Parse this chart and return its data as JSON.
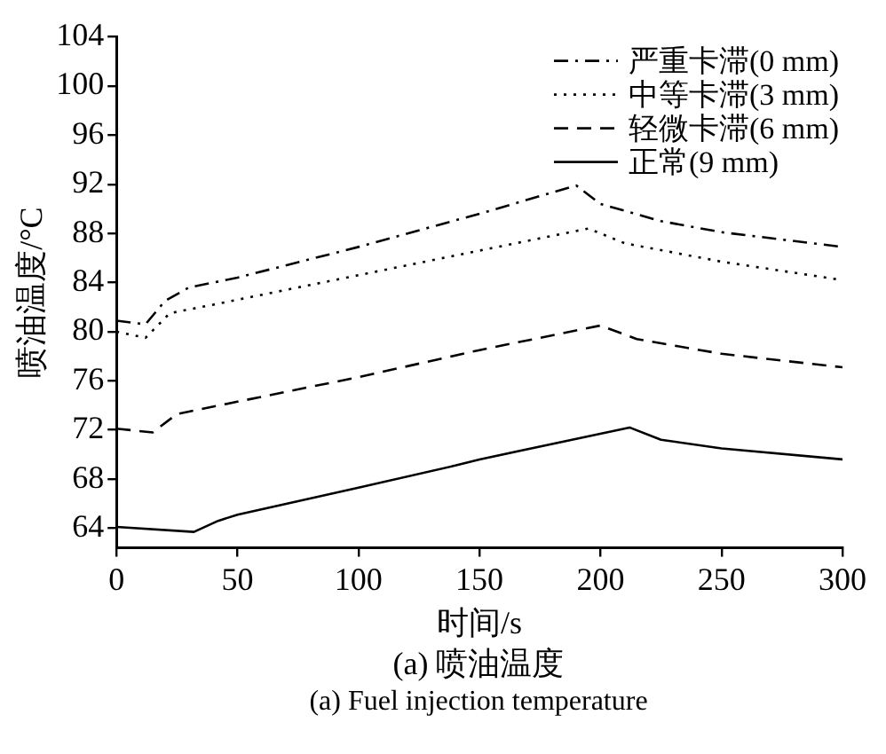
{
  "chart_data": {
    "type": "line",
    "xlabel": "时间/s",
    "ylabel": "喷油温度/°C",
    "annotations": [
      "(a) 喷油温度",
      "(a) Fuel injection temperature"
    ],
    "xlim": [
      0,
      300
    ],
    "xticks": [
      0,
      50,
      100,
      150,
      200,
      250,
      300
    ],
    "ylim": [
      62.4,
      104
    ],
    "yticks": [
      64,
      68,
      72,
      76,
      80,
      84,
      88,
      92,
      96,
      100,
      104
    ],
    "grid": false,
    "legend": "top right",
    "marker": "none",
    "series": [
      {
        "name": "严重卡滞(0 mm)",
        "color": "#000000",
        "line_style": "dashdot",
        "x": [
          0,
          12,
          20,
          30,
          50,
          100,
          150,
          190,
          200,
          225,
          250,
          300
        ],
        "values": [
          80.9,
          80.6,
          82.5,
          83.6,
          84.4,
          86.9,
          89.6,
          91.9,
          90.4,
          89,
          88.1,
          86.9
        ]
      },
      {
        "name": "中等卡滞(3 mm)",
        "color": "#000000",
        "line_style": "dotted",
        "x": [
          0,
          12,
          22,
          40,
          100,
          150,
          195,
          210,
          250,
          300
        ],
        "values": [
          80.0,
          79.5,
          81.5,
          82.2,
          84.6,
          86.6,
          88.4,
          87.2,
          85.7,
          84.2
        ]
      },
      {
        "name": "轻微卡滞(6 mm)",
        "color": "#000000",
        "line_style": "dashed",
        "x": [
          0,
          15,
          25,
          50,
          100,
          150,
          200,
          215,
          250,
          300
        ],
        "values": [
          72.1,
          71.8,
          73.3,
          74.3,
          76.3,
          78.5,
          80.5,
          79.4,
          78.2,
          77.1
        ]
      },
      {
        "name": "正常(9 mm)",
        "color": "#000000",
        "line_style": "solid",
        "x": [
          0,
          32,
          42,
          50,
          100,
          140,
          150,
          212,
          225,
          250,
          300
        ],
        "values": [
          64.1,
          63.7,
          64.6,
          65.1,
          67.3,
          69.1,
          69.6,
          72.2,
          71.2,
          70.5,
          69.6
        ]
      }
    ]
  }
}
